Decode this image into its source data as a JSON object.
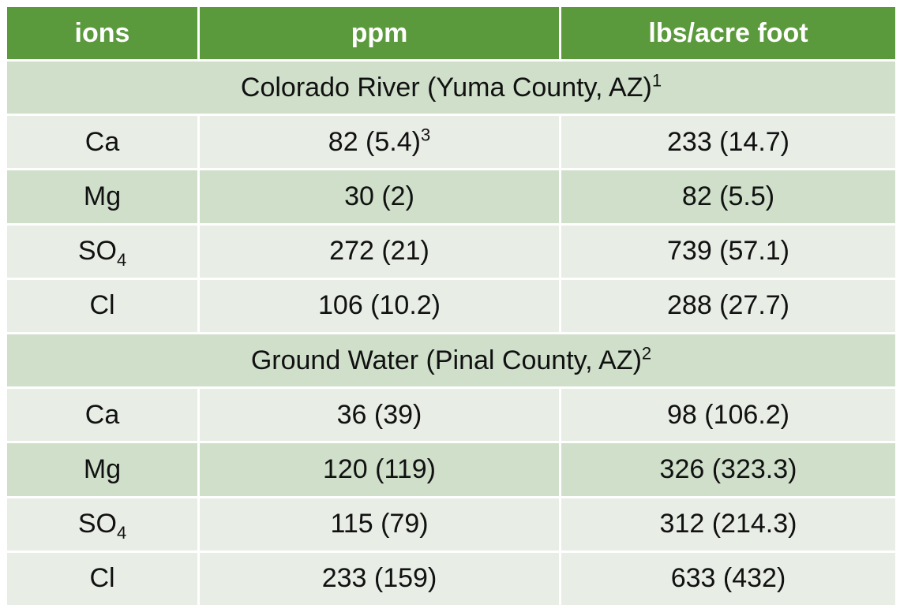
{
  "header": {
    "col1": "ions",
    "col2": "ppm",
    "col3": "lbs/acre foot"
  },
  "sections": [
    {
      "title": "Colorado River (Yuma County, AZ)",
      "footnote": "1",
      "rows": [
        {
          "ion": "Ca",
          "ion_sub": "",
          "ppm": "82 (5.4)",
          "ppm_sup": "3",
          "lbs": "233 (14.7)"
        },
        {
          "ion": "Mg",
          "ion_sub": "",
          "ppm": "30 (2)",
          "ppm_sup": "",
          "lbs": "82 (5.5)"
        },
        {
          "ion": "SO",
          "ion_sub": "4",
          "ppm": "272 (21)",
          "ppm_sup": "",
          "lbs": "739 (57.1)"
        },
        {
          "ion": "Cl",
          "ion_sub": "",
          "ppm": "106 (10.2)",
          "ppm_sup": "",
          "lbs": "288 (27.7)"
        }
      ]
    },
    {
      "title": "Ground Water (Pinal County, AZ)",
      "footnote": "2",
      "rows": [
        {
          "ion": "Ca",
          "ion_sub": "",
          "ppm": "36 (39)",
          "ppm_sup": "",
          "lbs": "98 (106.2)"
        },
        {
          "ion": "Mg",
          "ion_sub": "",
          "ppm": "120 (119)",
          "ppm_sup": "",
          "lbs": "326 (323.3)"
        },
        {
          "ion": "SO",
          "ion_sub": "4",
          "ppm": "115 (79)",
          "ppm_sup": "",
          "lbs": "312 (214.3)"
        },
        {
          "ion": "Cl",
          "ion_sub": "",
          "ppm": "233 (159)",
          "ppm_sup": "",
          "lbs": "633 (432)"
        }
      ]
    }
  ]
}
